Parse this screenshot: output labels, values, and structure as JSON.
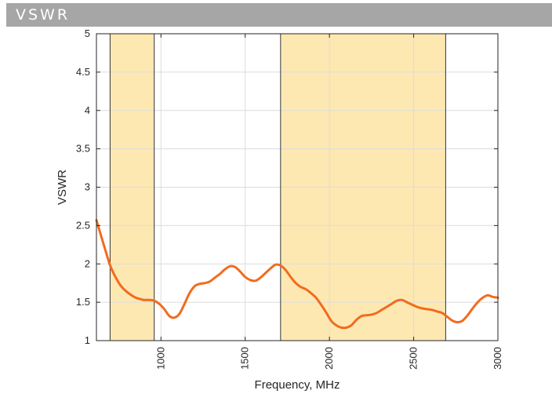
{
  "header": {
    "title": "VSWR"
  },
  "chart_data": {
    "type": "line",
    "title": "",
    "xlabel": "Frequency, MHz",
    "ylabel": "VSWR",
    "xlim": [
      617,
      3000
    ],
    "ylim": [
      1,
      5
    ],
    "xticks": [
      1000,
      1500,
      2000,
      2500,
      3000
    ],
    "xtick_labels": [
      "1000",
      "1500",
      "2000",
      "2500",
      "3000"
    ],
    "yticks": [
      1,
      1.5,
      2,
      2.5,
      3,
      3.5,
      4,
      4.5,
      5
    ],
    "ytick_labels": [
      "1",
      "1.5",
      "2",
      "2.5",
      "3",
      "3.5",
      "4",
      "4.5",
      "5"
    ],
    "grid": true,
    "highlight_bands": [
      {
        "x0": 698,
        "x1": 960
      },
      {
        "x0": 1710,
        "x1": 2690
      }
    ],
    "series": [
      {
        "color": "#f26b1d",
        "x": [
          617,
          640,
          670,
          700,
          730,
          760,
          790,
          820,
          850,
          880,
          900,
          930,
          960,
          990,
          1020,
          1050,
          1080,
          1110,
          1140,
          1170,
          1200,
          1230,
          1260,
          1290,
          1320,
          1350,
          1380,
          1410,
          1440,
          1470,
          1500,
          1530,
          1560,
          1590,
          1620,
          1650,
          1680,
          1710,
          1740,
          1770,
          1800,
          1830,
          1860,
          1890,
          1920,
          1950,
          1980,
          2010,
          2040,
          2070,
          2100,
          2130,
          2160,
          2190,
          2220,
          2250,
          2280,
          2310,
          2340,
          2370,
          2400,
          2430,
          2460,
          2490,
          2520,
          2550,
          2580,
          2610,
          2640,
          2670,
          2700,
          2730,
          2760,
          2790,
          2820,
          2850,
          2880,
          2910,
          2940,
          2970,
          3000
        ],
        "values": [
          2.57,
          2.4,
          2.18,
          1.97,
          1.83,
          1.72,
          1.65,
          1.6,
          1.56,
          1.54,
          1.53,
          1.53,
          1.52,
          1.48,
          1.41,
          1.32,
          1.3,
          1.35,
          1.48,
          1.62,
          1.71,
          1.74,
          1.75,
          1.77,
          1.82,
          1.87,
          1.93,
          1.97,
          1.96,
          1.9,
          1.83,
          1.79,
          1.78,
          1.82,
          1.88,
          1.94,
          1.99,
          1.98,
          1.92,
          1.83,
          1.75,
          1.7,
          1.67,
          1.62,
          1.56,
          1.47,
          1.37,
          1.26,
          1.2,
          1.17,
          1.17,
          1.2,
          1.27,
          1.32,
          1.33,
          1.34,
          1.36,
          1.4,
          1.44,
          1.48,
          1.52,
          1.53,
          1.5,
          1.47,
          1.44,
          1.42,
          1.41,
          1.4,
          1.38,
          1.36,
          1.31,
          1.26,
          1.24,
          1.26,
          1.33,
          1.42,
          1.5,
          1.56,
          1.59,
          1.57,
          1.56
        ]
      }
    ]
  }
}
